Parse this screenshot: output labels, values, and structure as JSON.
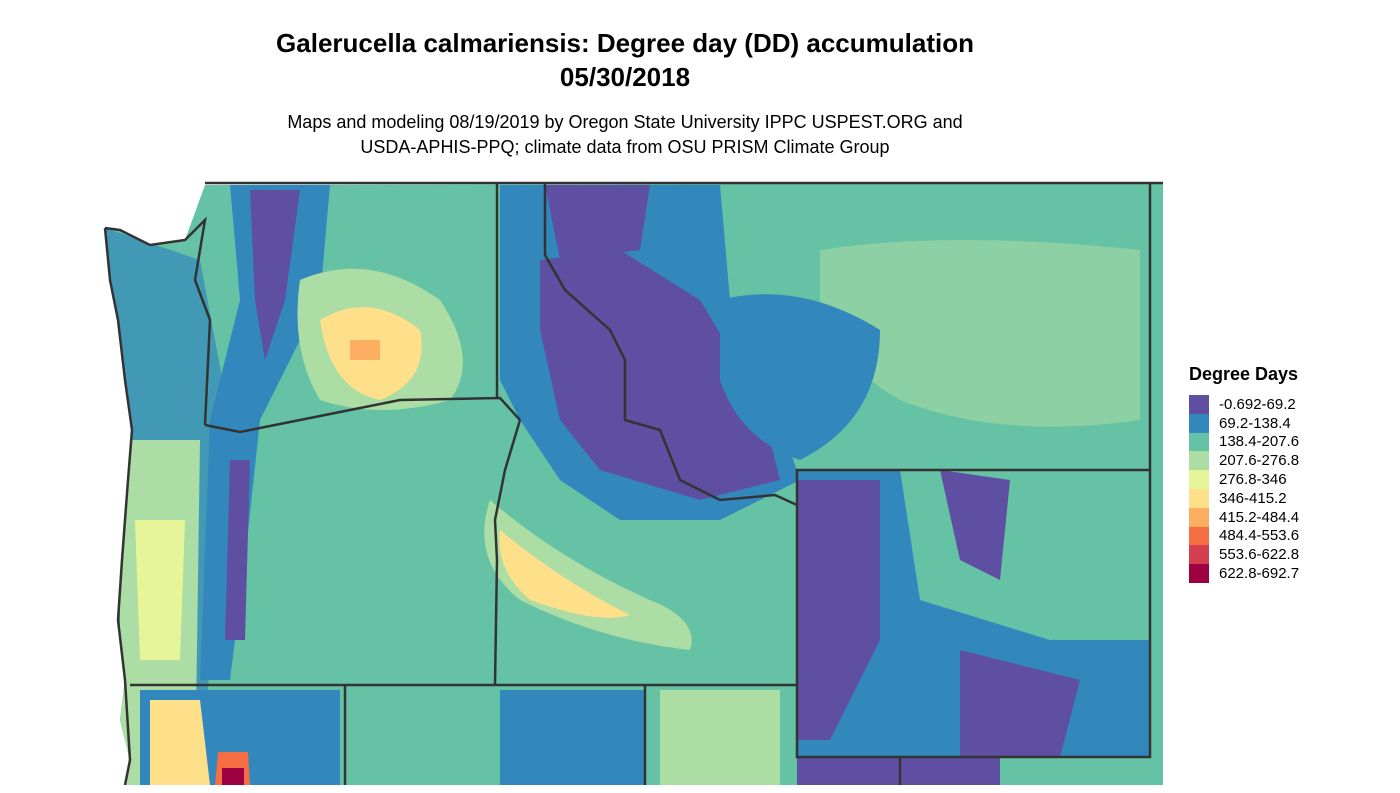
{
  "title": {
    "line1": "Galerucella calmariensis: Degree day (DD) accumulation",
    "line2": "05/30/2018"
  },
  "subtitle": {
    "line1": "Maps and modeling 08/19/2019 by Oregon State University IPPC USPEST.ORG and",
    "line2": "USDA-APHIS-PPQ; climate data from OSU PRISM Climate Group"
  },
  "legend": {
    "title": "Degree Days",
    "items": [
      {
        "label": "-0.692-69.2",
        "color": "#5E4FA2"
      },
      {
        "label": "69.2-138.4",
        "color": "#3288BD"
      },
      {
        "label": "138.4-207.6",
        "color": "#66C2A5"
      },
      {
        "label": "207.6-276.8",
        "color": "#ABDDA4"
      },
      {
        "label": "276.8-346",
        "color": "#E6F598"
      },
      {
        "label": "346-415.2",
        "color": "#FEE08B"
      },
      {
        "label": "415.2-484.4",
        "color": "#FDAE61"
      },
      {
        "label": "484.4-553.6",
        "color": "#F46D43"
      },
      {
        "label": "553.6-622.8",
        "color": "#D53E4F"
      },
      {
        "label": "622.8-692.7",
        "color": "#9E0142"
      }
    ]
  },
  "map": {
    "border_color": "#333333",
    "region": "Pacific Northwest (WA, OR, ID, MT, WY)"
  }
}
